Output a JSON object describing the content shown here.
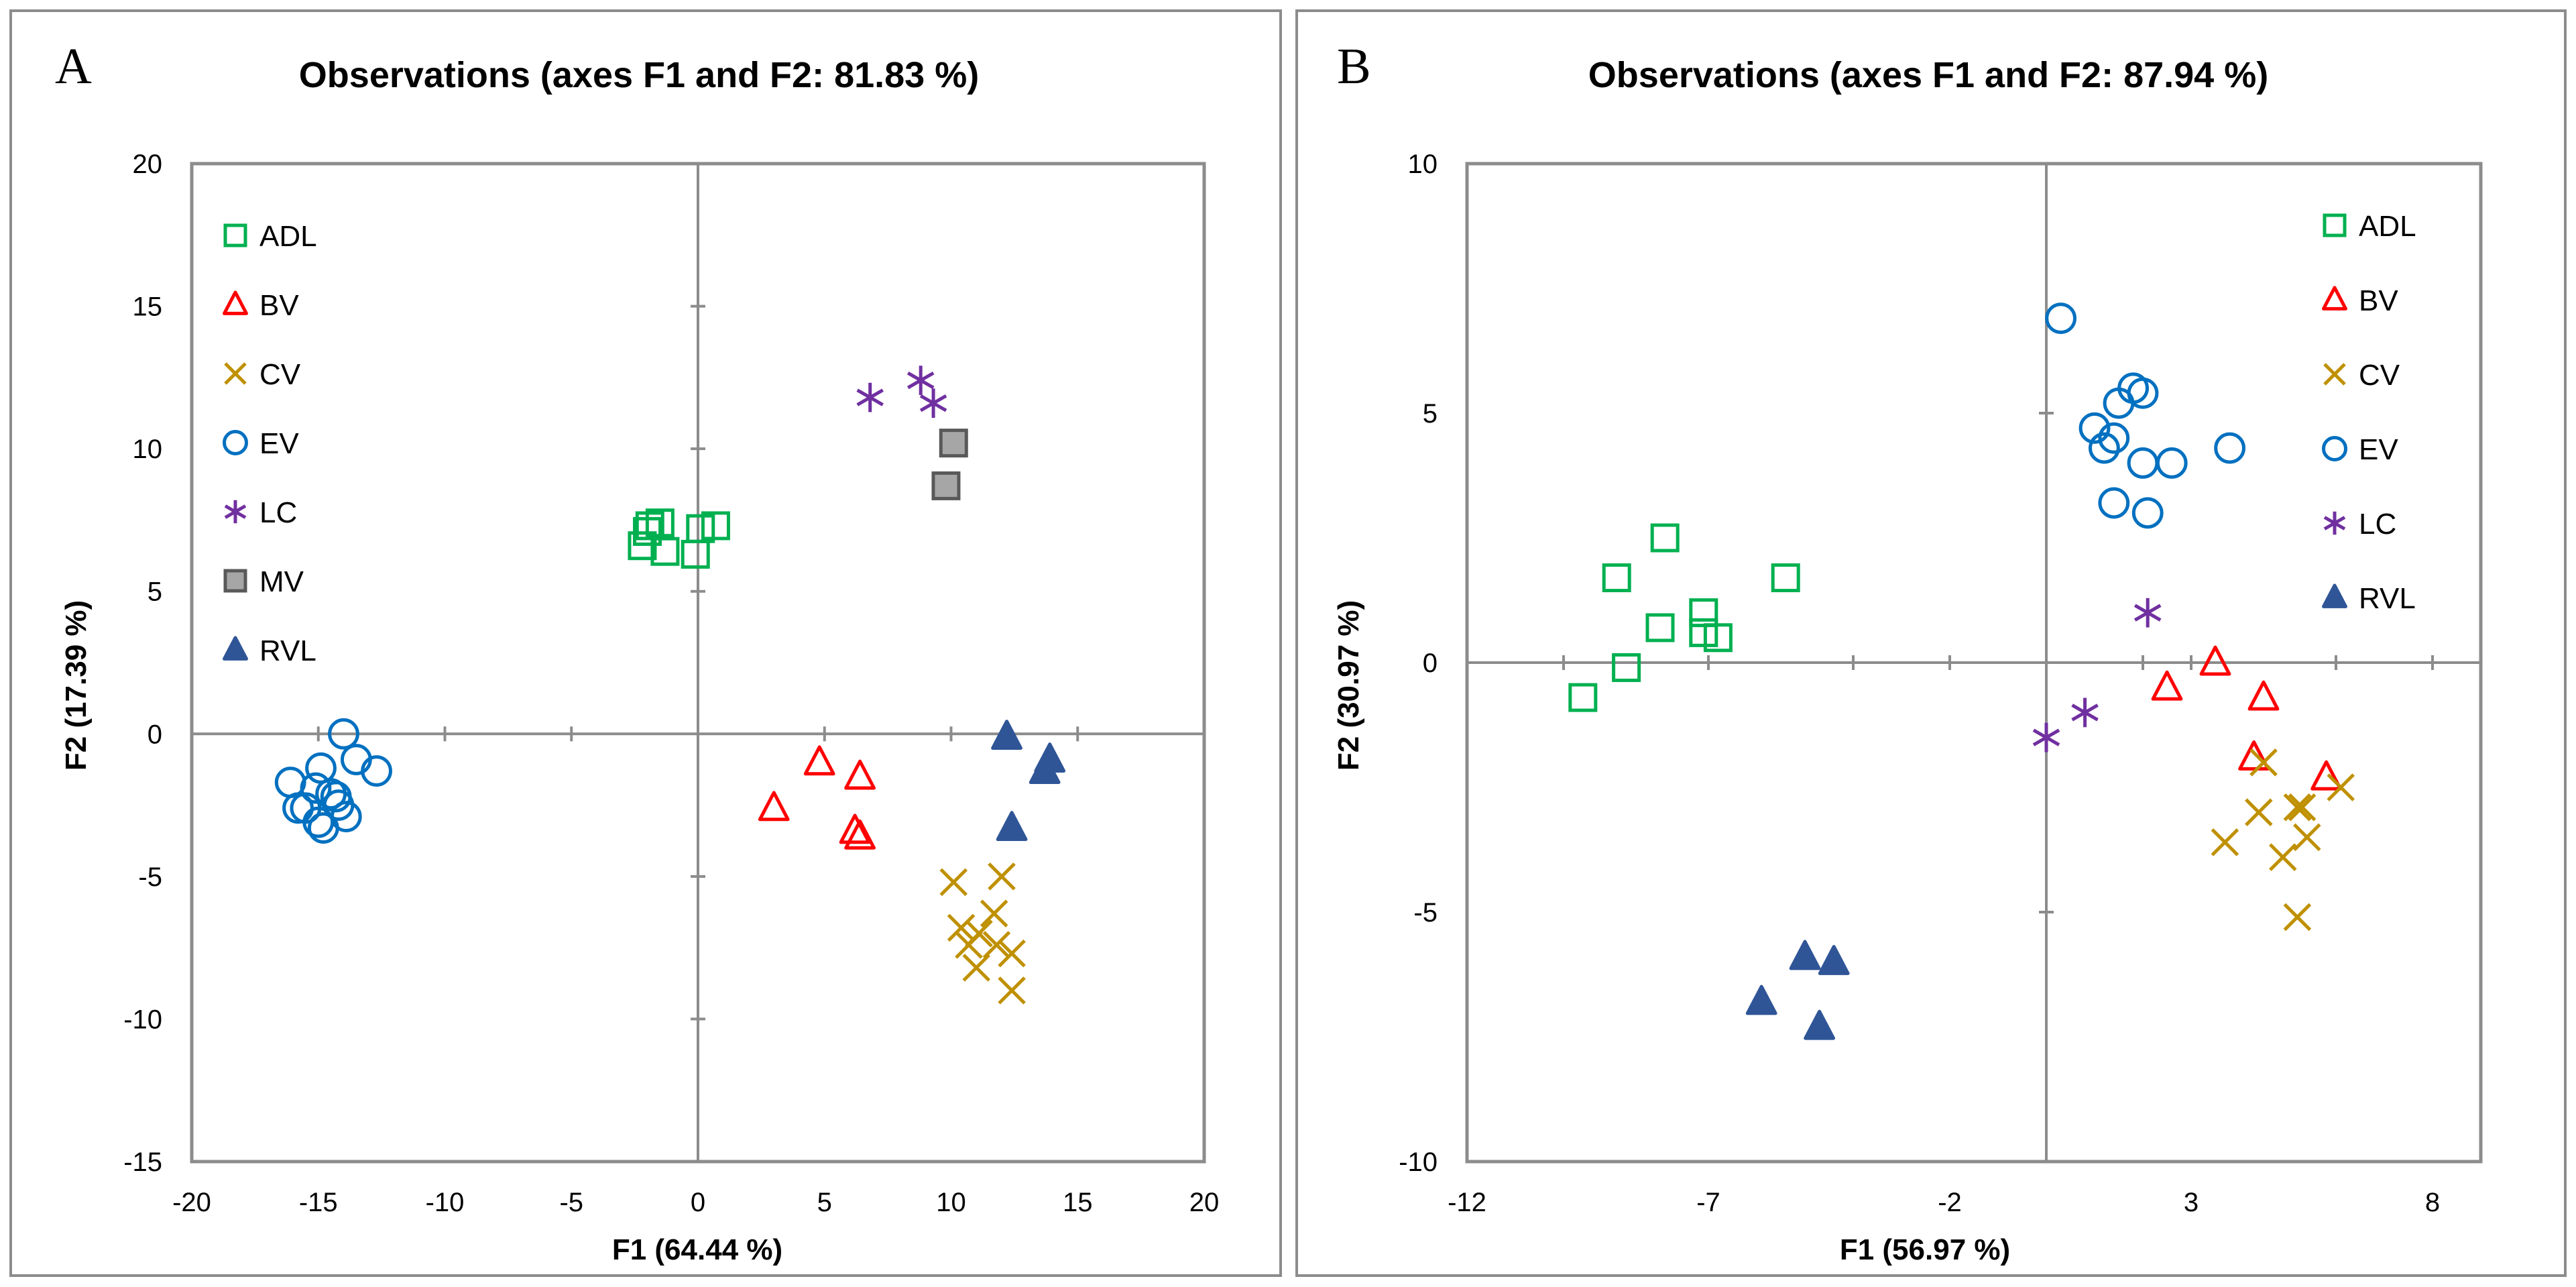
{
  "chart_data": [
    {
      "type": "scatter",
      "panel_letter": "A",
      "title": "Observations (axes F1 and F2: 81.83 %)",
      "xlabel": "F1 (64.44 %)",
      "ylabel": "F2 (17.39 %)",
      "xlim": [
        -20,
        20
      ],
      "ylim": [
        -15,
        20
      ],
      "xticks": [
        -20,
        -15,
        -10,
        -5,
        0,
        5,
        10,
        15,
        20
      ],
      "yticks": [
        -15,
        -10,
        -5,
        0,
        5,
        10,
        15,
        20
      ],
      "grid": false,
      "zero_lines": true,
      "legend_position": "top-left",
      "series": [
        {
          "name": "ADL",
          "marker": "square-open",
          "color": "#00b050",
          "points": [
            [
              -2.2,
              6.6
            ],
            [
              -1.9,
              7.3
            ],
            [
              -1.5,
              7.4
            ],
            [
              -1.3,
              6.4
            ],
            [
              -0.1,
              6.3
            ],
            [
              0.1,
              7.2
            ],
            [
              0.7,
              7.3
            ],
            [
              -2.0,
              7.1
            ]
          ]
        },
        {
          "name": "BV",
          "marker": "triangle-open",
          "color": "#ff0000",
          "points": [
            [
              3.0,
              -2.6
            ],
            [
              4.8,
              -1.0
            ],
            [
              6.2,
              -3.4
            ],
            [
              6.4,
              -1.5
            ],
            [
              6.4,
              -3.6
            ]
          ]
        },
        {
          "name": "CV",
          "marker": "x",
          "color": "#bf9000",
          "points": [
            [
              10.1,
              -5.2
            ],
            [
              10.4,
              -6.8
            ],
            [
              10.7,
              -7.4
            ],
            [
              11.1,
              -7.0
            ],
            [
              11.0,
              -8.2
            ],
            [
              11.7,
              -6.3
            ],
            [
              11.8,
              -7.4
            ],
            [
              12.0,
              -5.0
            ],
            [
              12.4,
              -7.7
            ],
            [
              12.4,
              -9.0
            ]
          ]
        },
        {
          "name": "EV",
          "marker": "circle-open",
          "color": "#0070c0",
          "points": [
            [
              -16.1,
              -1.7
            ],
            [
              -15.8,
              -2.6
            ],
            [
              -15.5,
              -2.6
            ],
            [
              -15.1,
              -1.9
            ],
            [
              -14.9,
              -1.2
            ],
            [
              -15.0,
              -3.1
            ],
            [
              -14.8,
              -3.3
            ],
            [
              -14.5,
              -2.1
            ],
            [
              -14.2,
              -2.5
            ],
            [
              -14.3,
              -2.2
            ],
            [
              -14.0,
              0.0
            ],
            [
              -13.9,
              -2.9
            ],
            [
              -13.5,
              -0.9
            ],
            [
              -12.7,
              -1.3
            ]
          ]
        },
        {
          "name": "LC",
          "marker": "asterisk",
          "color": "#7030a0",
          "points": [
            [
              6.8,
              11.8
            ],
            [
              8.8,
              12.4
            ],
            [
              9.3,
              11.6
            ]
          ]
        },
        {
          "name": "MV",
          "marker": "square-filled",
          "color": "#a6a6a6",
          "points": [
            [
              10.1,
              10.2
            ],
            [
              9.8,
              8.7
            ]
          ]
        },
        {
          "name": "RVL",
          "marker": "triangle-filled",
          "color": "#2f5597",
          "points": [
            [
              12.2,
              -0.1
            ],
            [
              13.7,
              -1.3
            ],
            [
              13.9,
              -0.9
            ],
            [
              12.4,
              -3.3
            ]
          ]
        }
      ]
    },
    {
      "type": "scatter",
      "panel_letter": "B",
      "title": "Observations (axes F1 and F2: 87.94 %)",
      "xlabel": "F1 (56.97 %)",
      "ylabel": "F2 (30.97 %)",
      "xlim": [
        -12,
        9
      ],
      "ylim": [
        -10,
        10
      ],
      "xticks": [
        -12,
        -7,
        -2,
        3,
        8
      ],
      "xticks_unlabeled": [
        -10,
        -4,
        2,
        6
      ],
      "yticks": [
        -10,
        -5,
        0,
        5,
        10
      ],
      "grid": false,
      "zero_lines": true,
      "legend_position": "top-right",
      "series": [
        {
          "name": "ADL",
          "marker": "square-open",
          "color": "#00b050",
          "points": [
            [
              -9.6,
              -0.7
            ],
            [
              -8.9,
              1.7
            ],
            [
              -8.7,
              -0.1
            ],
            [
              -7.9,
              2.5
            ],
            [
              -8.0,
              0.7
            ],
            [
              -7.1,
              1.0
            ],
            [
              -7.1,
              0.6
            ],
            [
              -6.8,
              0.5
            ],
            [
              -5.4,
              1.7
            ]
          ]
        },
        {
          "name": "BV",
          "marker": "triangle-open",
          "color": "#ff0000",
          "points": [
            [
              2.5,
              -0.5
            ],
            [
              3.5,
              0.0
            ],
            [
              4.5,
              -0.7
            ],
            [
              4.3,
              -1.9
            ],
            [
              5.8,
              -2.3
            ]
          ]
        },
        {
          "name": "CV",
          "marker": "x",
          "color": "#bf9000",
          "points": [
            [
              3.7,
              -3.6
            ],
            [
              4.4,
              -3.0
            ],
            [
              4.5,
              -2.0
            ],
            [
              4.9,
              -3.9
            ],
            [
              5.2,
              -2.9
            ],
            [
              5.4,
              -3.5
            ],
            [
              5.3,
              -2.9
            ],
            [
              6.1,
              -2.5
            ],
            [
              5.2,
              -5.1
            ]
          ]
        },
        {
          "name": "EV",
          "marker": "circle-open",
          "color": "#0070c0",
          "points": [
            [
              0.3,
              6.9
            ],
            [
              1.0,
              4.7
            ],
            [
              1.2,
              4.3
            ],
            [
              1.4,
              4.5
            ],
            [
              1.5,
              5.2
            ],
            [
              1.8,
              5.5
            ],
            [
              2.0,
              5.4
            ],
            [
              2.0,
              4.0
            ],
            [
              2.6,
              4.0
            ],
            [
              1.4,
              3.2
            ],
            [
              2.1,
              3.0
            ],
            [
              3.8,
              4.3
            ]
          ]
        },
        {
          "name": "LC",
          "marker": "asterisk",
          "color": "#7030a0",
          "points": [
            [
              0.0,
              -1.5
            ],
            [
              0.8,
              -1.0
            ],
            [
              2.1,
              1.0
            ]
          ]
        },
        {
          "name": "RVL",
          "marker": "triangle-filled",
          "color": "#2f5597",
          "points": [
            [
              -5.9,
              -6.8
            ],
            [
              -5.0,
              -5.9
            ],
            [
              -4.4,
              -6.0
            ],
            [
              -4.7,
              -7.3
            ]
          ]
        }
      ]
    }
  ]
}
